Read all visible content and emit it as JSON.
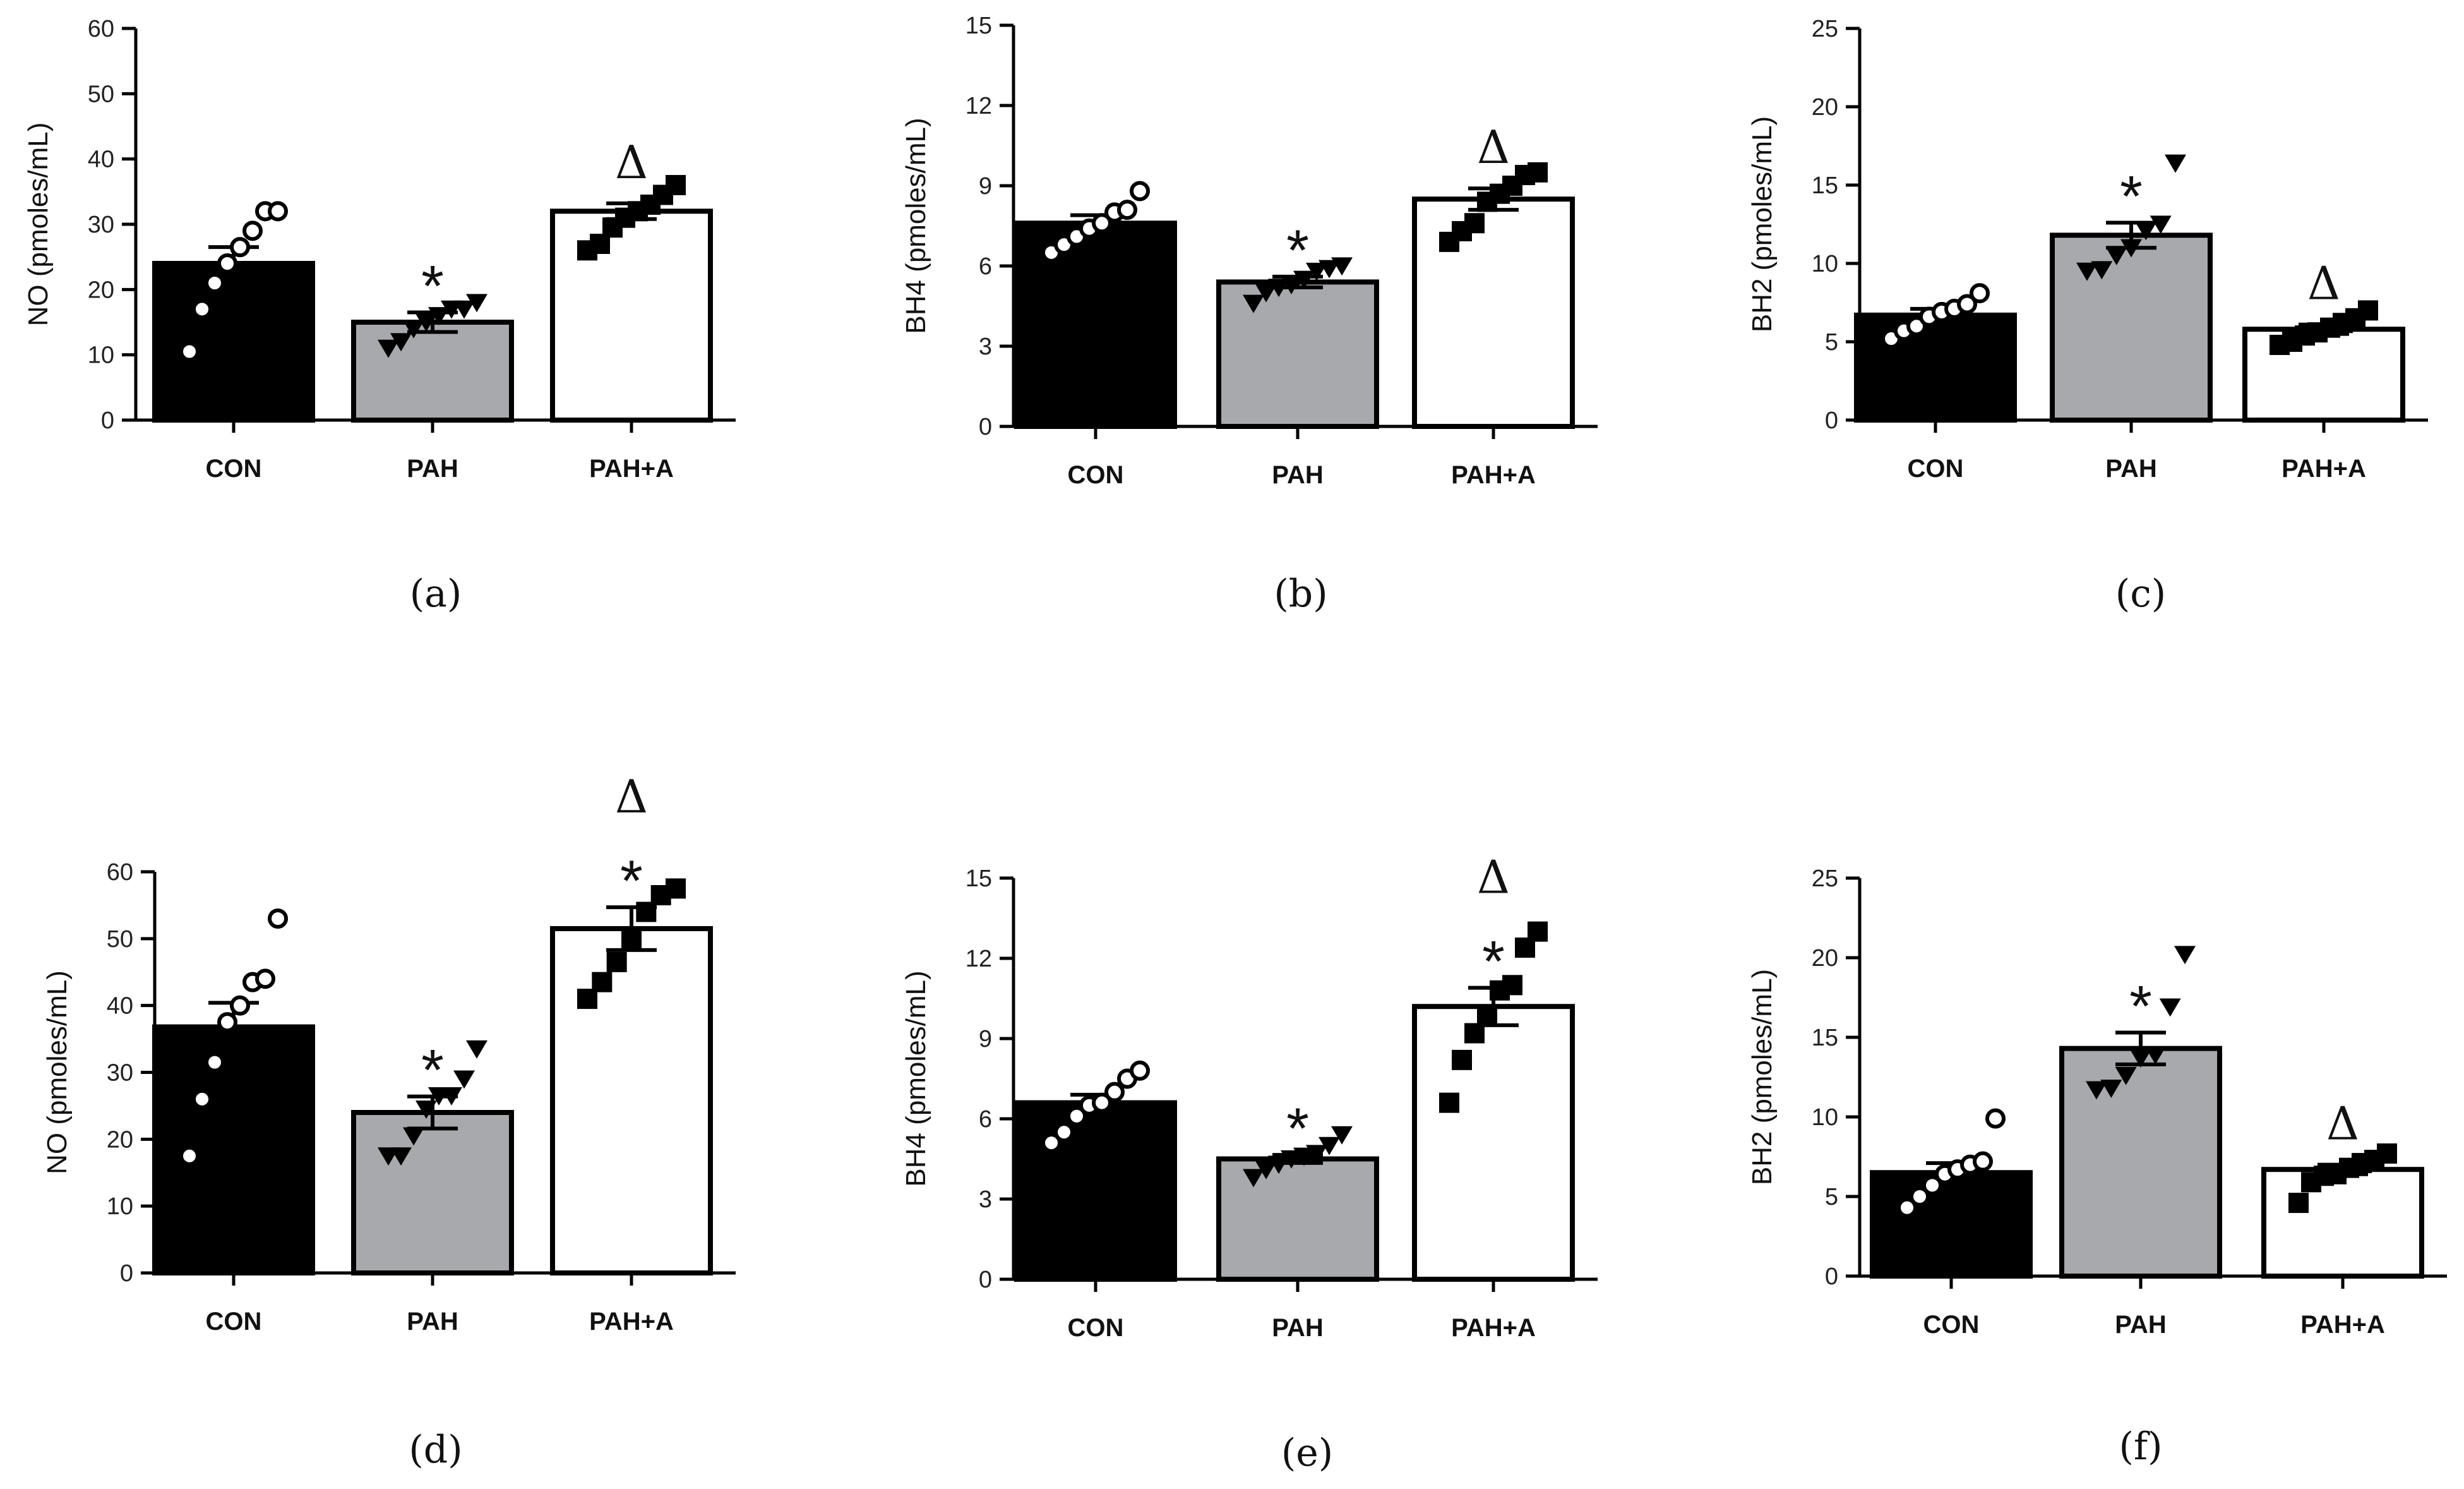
{
  "colors": {
    "con_bar": "#000000",
    "pah_bar": "#a7a9ac",
    "paha_bar": "#ffffff",
    "axis": "#000000"
  },
  "chart_data": [
    {
      "panel_label": "(a)",
      "type": "bar",
      "ylabel": "NO (pmoles/mL)",
      "ylim": [
        0,
        60
      ],
      "yticks": [
        0,
        10,
        20,
        30,
        40,
        50,
        60
      ],
      "categories": [
        "CON",
        "PAH",
        "PAH+A"
      ],
      "values": [
        24,
        15,
        32
      ],
      "sem": [
        2.5,
        1.5,
        1.2
      ],
      "markers": [
        "circle-open",
        "triangle-down",
        "square"
      ],
      "points": [
        [
          10.5,
          17,
          21,
          24,
          26.5,
          29,
          32,
          32
        ],
        [
          11,
          12,
          14,
          15,
          16,
          17,
          17,
          18
        ],
        [
          26,
          27,
          29.5,
          31,
          32,
          33,
          34.5,
          36
        ]
      ],
      "annotations": [
        "",
        "*",
        "Δ"
      ]
    },
    {
      "panel_label": "(b)",
      "type": "bar",
      "ylabel": "BH4 (pmoles/mL)",
      "ylim": [
        0,
        15
      ],
      "yticks": [
        0,
        3,
        6,
        9,
        12,
        15
      ],
      "categories": [
        "CON",
        "PAH",
        "PAH+A"
      ],
      "values": [
        7.6,
        5.4,
        8.5
      ],
      "sem": [
        0.3,
        0.2,
        0.4
      ],
      "markers": [
        "circle-open",
        "triangle-down",
        "square"
      ],
      "points": [
        [
          6.5,
          6.8,
          7.1,
          7.4,
          7.6,
          8.0,
          8.1,
          8.8
        ],
        [
          4.6,
          5.0,
          5.2,
          5.3,
          5.5,
          5.8,
          5.9,
          6.0
        ],
        [
          6.9,
          7.3,
          7.6,
          8.4,
          8.7,
          9.0,
          9.4,
          9.5
        ]
      ],
      "annotations": [
        "",
        "*",
        "Δ"
      ]
    },
    {
      "panel_label": "(c)",
      "type": "bar",
      "ylabel": "BH2 (pmoles/mL)",
      "ylim": [
        0,
        25
      ],
      "yticks": [
        0,
        5,
        10,
        15,
        20,
        25
      ],
      "categories": [
        "CON",
        "PAH",
        "PAH+A"
      ],
      "values": [
        6.7,
        11.8,
        5.8
      ],
      "sem": [
        0.4,
        0.8,
        0.3
      ],
      "markers": [
        "circle-open",
        "triangle-down",
        "square"
      ],
      "points": [
        [
          5.2,
          5.7,
          6.0,
          6.6,
          6.9,
          7.1,
          7.4,
          8.1
        ],
        [
          9.5,
          9.6,
          10.5,
          11.0,
          12.1,
          12.5,
          16.4
        ],
        [
          4.8,
          5.0,
          5.4,
          5.6,
          5.9,
          6.2,
          6.5,
          7.0
        ]
      ],
      "annotations": [
        "",
        "*",
        "Δ"
      ]
    },
    {
      "panel_label": "(d)",
      "type": "bar",
      "ylabel": "NO (pmoles/mL)",
      "ylim": [
        0,
        60
      ],
      "yticks": [
        0,
        10,
        20,
        30,
        40,
        50,
        60
      ],
      "categories": [
        "CON",
        "PAH",
        "PAH+A"
      ],
      "values": [
        36.8,
        24,
        51.5
      ],
      "sem": [
        3.6,
        2.4,
        3.2
      ],
      "markers": [
        "circle-open",
        "triangle-down",
        "square"
      ],
      "points": [
        [
          17.5,
          26,
          31.5,
          37.5,
          40,
          43.5,
          44,
          53
        ],
        [
          17.5,
          17.5,
          20.5,
          24.5,
          26.5,
          26.5,
          29,
          33.5
        ],
        [
          41,
          43.5,
          46.5,
          50,
          54,
          56.5,
          57.5
        ]
      ],
      "annotations": [
        "",
        "*",
        "*Δ"
      ]
    },
    {
      "panel_label": "(e)",
      "type": "bar",
      "ylabel": "BH4 (pmoles/mL)",
      "ylim": [
        0,
        15
      ],
      "yticks": [
        0,
        3,
        6,
        9,
        12,
        15
      ],
      "categories": [
        "CON",
        "PAH",
        "PAH+A"
      ],
      "values": [
        6.6,
        4.5,
        10.2
      ],
      "sem": [
        0.3,
        0.15,
        0.7
      ],
      "markers": [
        "circle-open",
        "triangle-down",
        "square"
      ],
      "points": [
        [
          5.1,
          5.5,
          6.1,
          6.5,
          6.6,
          7.0,
          7.5,
          7.8
        ],
        [
          3.8,
          4.1,
          4.3,
          4.5,
          4.6,
          4.7,
          5.0,
          5.4
        ],
        [
          6.6,
          8.2,
          9.2,
          9.9,
          10.8,
          11.0,
          12.4,
          13.0
        ]
      ],
      "annotations": [
        "",
        "*",
        "*Δ"
      ]
    },
    {
      "panel_label": "(f)",
      "type": "bar",
      "ylabel": "BH2 (pmoles/mL)",
      "ylim": [
        0,
        25
      ],
      "yticks": [
        0,
        5,
        10,
        15,
        20,
        25
      ],
      "categories": [
        "CON",
        "PAH",
        "PAH+A"
      ],
      "values": [
        6.5,
        14.3,
        6.7
      ],
      "sem": [
        0.6,
        1.0,
        0.3
      ],
      "markers": [
        "circle-open",
        "triangle-down",
        "square"
      ],
      "points": [
        [
          4.3,
          5.0,
          5.7,
          6.4,
          6.7,
          7.0,
          7.2,
          9.9
        ],
        [
          11.7,
          11.8,
          12.6,
          13.7,
          13.9,
          16.9,
          20.2
        ],
        [
          4.6,
          5.9,
          6.3,
          6.4,
          6.8,
          7.1,
          7.3,
          7.7
        ]
      ],
      "annotations": [
        "",
        "*",
        "Δ"
      ]
    }
  ]
}
